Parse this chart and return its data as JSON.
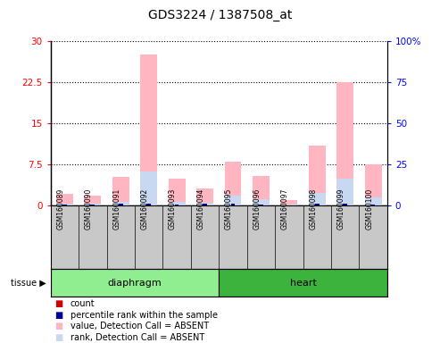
{
  "title": "GDS3224 / 1387508_at",
  "samples": [
    "GSM160089",
    "GSM160090",
    "GSM160091",
    "GSM160092",
    "GSM160093",
    "GSM160094",
    "GSM160095",
    "GSM160096",
    "GSM160097",
    "GSM160098",
    "GSM160099",
    "GSM160100"
  ],
  "tissue_groups": [
    {
      "label": "diaphragm",
      "start": 0,
      "end": 6,
      "color": "#90EE90"
    },
    {
      "label": "heart",
      "start": 6,
      "end": 12,
      "color": "#3CB33C"
    }
  ],
  "value_absent": [
    2.2,
    1.8,
    5.2,
    27.5,
    5.0,
    3.2,
    8.0,
    5.5,
    1.0,
    11.0,
    22.5,
    7.5
  ],
  "rank_absent_pct": [
    1.5,
    1.2,
    2.5,
    21.0,
    2.2,
    2.0,
    6.0,
    4.0,
    0.6,
    8.0,
    16.5,
    5.0
  ],
  "count": [
    0.35,
    0.28,
    0.42,
    0.45,
    0.32,
    0.38,
    0.45,
    0.38,
    0.18,
    0.38,
    0.45,
    0.28
  ],
  "rank_present_pct": [
    0.9,
    0.7,
    1.5,
    1.2,
    0.9,
    1.1,
    1.2,
    0.9,
    0.45,
    1.1,
    1.5,
    0.75
  ],
  "ylim_left": [
    0,
    30
  ],
  "ylim_right": [
    0,
    100
  ],
  "yticks_left": [
    0,
    7.5,
    15,
    22.5,
    30
  ],
  "yticks_right": [
    0,
    25,
    50,
    75,
    100
  ],
  "color_value_absent": "#FFB6C1",
  "color_rank_absent": "#C8D8F0",
  "color_count": "#CC0000",
  "color_rank_present": "#000099",
  "bar_width": 0.6,
  "legend_items": [
    {
      "color": "#CC0000",
      "label": "count"
    },
    {
      "color": "#000099",
      "label": "percentile rank within the sample"
    },
    {
      "color": "#FFB6C1",
      "label": "value, Detection Call = ABSENT"
    },
    {
      "color": "#C8D8F0",
      "label": "rank, Detection Call = ABSENT"
    }
  ]
}
